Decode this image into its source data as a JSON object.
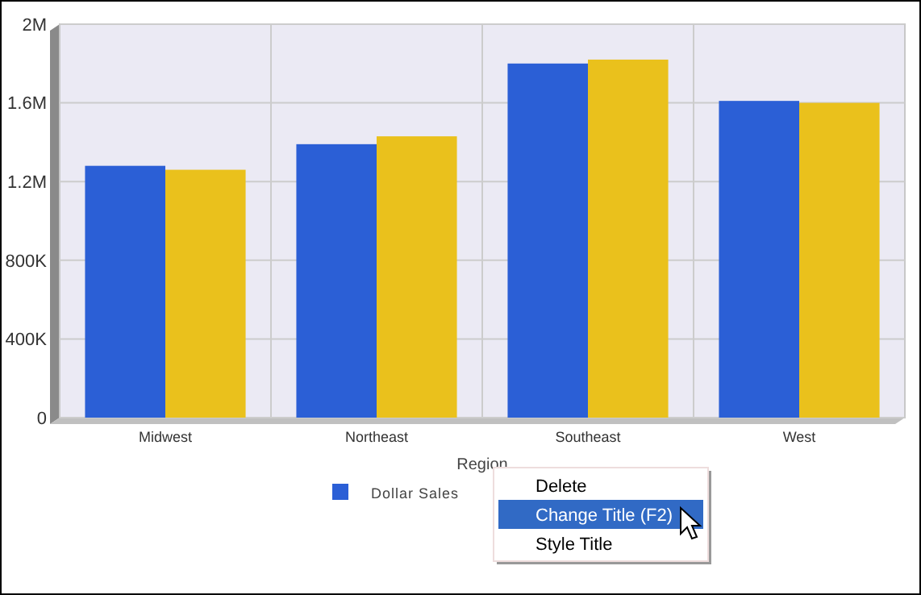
{
  "chart_data": {
    "type": "bar",
    "xlabel": "Region",
    "categories": [
      "Midwest",
      "Northeast",
      "Southeast",
      "West"
    ],
    "series": [
      {
        "name": "Dollar Sales",
        "color": "#2b5fd6",
        "values": [
          1280000,
          1390000,
          1800000,
          1610000
        ]
      },
      {
        "color": "#eac11c",
        "values": [
          1260000,
          1430000,
          1820000,
          1600000
        ]
      }
    ],
    "ylim": [
      0,
      2000000
    ],
    "yticks": [
      {
        "value": 0,
        "label": "0"
      },
      {
        "value": 400000,
        "label": "400K"
      },
      {
        "value": 800000,
        "label": "800K"
      },
      {
        "value": 1200000,
        "label": "1.2M"
      },
      {
        "value": 1600000,
        "label": "1.6M"
      },
      {
        "value": 2000000,
        "label": "2M"
      }
    ],
    "grid": true,
    "legend": "bottom",
    "annotations": [
      "Delete",
      "Change Title (F2)",
      "Style Title"
    ]
  }
}
